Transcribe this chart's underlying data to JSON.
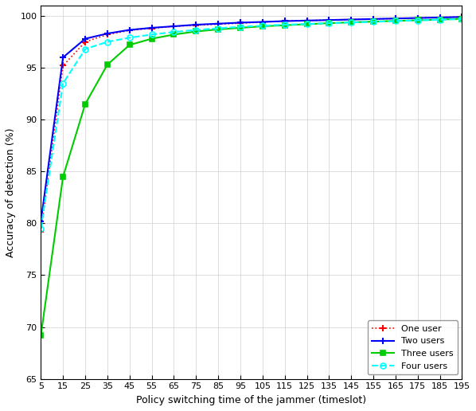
{
  "title": "",
  "xlabel": "Policy switching time of the jammer (timeslot)",
  "ylabel": "Accuracy of detection (%)",
  "xlim": [
    5,
    195
  ],
  "ylim": [
    65,
    101
  ],
  "xticks": [
    5,
    15,
    25,
    35,
    45,
    55,
    65,
    75,
    85,
    95,
    105,
    115,
    125,
    135,
    145,
    155,
    165,
    175,
    185,
    195
  ],
  "yticks": [
    65,
    70,
    75,
    80,
    85,
    90,
    95,
    100
  ],
  "series": [
    {
      "label": "One user",
      "color": "red",
      "linestyle": ":",
      "marker": "+",
      "markersize": 6,
      "markeredgewidth": 1.5,
      "linewidth": 1.2,
      "x": [
        5,
        15,
        25,
        35,
        45,
        55,
        65,
        75,
        85,
        95,
        105,
        115,
        125,
        135,
        145,
        155,
        165,
        175,
        185,
        195
      ],
      "y": [
        79.2,
        95.2,
        97.5,
        98.2,
        98.6,
        98.8,
        99.0,
        99.1,
        99.2,
        99.3,
        99.4,
        99.5,
        99.55,
        99.6,
        99.65,
        99.7,
        99.75,
        99.8,
        99.85,
        99.9
      ]
    },
    {
      "label": "Two users",
      "color": "blue",
      "linestyle": "-",
      "marker": "+",
      "markersize": 6,
      "markeredgewidth": 1.5,
      "linewidth": 1.5,
      "x": [
        5,
        15,
        25,
        35,
        45,
        55,
        65,
        75,
        85,
        95,
        105,
        115,
        125,
        135,
        145,
        155,
        165,
        175,
        185,
        195
      ],
      "y": [
        80.2,
        96.0,
        97.8,
        98.3,
        98.65,
        98.85,
        99.0,
        99.15,
        99.25,
        99.35,
        99.42,
        99.5,
        99.55,
        99.6,
        99.65,
        99.7,
        99.75,
        99.8,
        99.85,
        99.9
      ]
    },
    {
      "label": "Three users",
      "color": "#00cc00",
      "linestyle": "-",
      "marker": "s",
      "markersize": 5,
      "markeredgewidth": 1.2,
      "linewidth": 1.5,
      "markerfacecolor": "#00cc00",
      "x": [
        5,
        15,
        25,
        35,
        45,
        55,
        65,
        75,
        85,
        95,
        105,
        115,
        125,
        135,
        145,
        155,
        165,
        175,
        185,
        195
      ],
      "y": [
        69.2,
        84.5,
        91.5,
        95.3,
        97.2,
        97.8,
        98.2,
        98.5,
        98.7,
        98.85,
        99.0,
        99.1,
        99.2,
        99.3,
        99.38,
        99.45,
        99.52,
        99.58,
        99.65,
        99.72
      ]
    },
    {
      "label": "Four users",
      "color": "cyan",
      "linestyle": "--",
      "marker": "o",
      "markersize": 5,
      "markeredgewidth": 1.2,
      "linewidth": 1.5,
      "markerfacecolor": "none",
      "x": [
        5,
        15,
        25,
        35,
        45,
        55,
        65,
        75,
        85,
        95,
        105,
        115,
        125,
        135,
        145,
        155,
        165,
        175,
        185,
        195
      ],
      "y": [
        79.5,
        93.5,
        96.8,
        97.5,
        97.9,
        98.2,
        98.45,
        98.65,
        98.8,
        98.95,
        99.05,
        99.15,
        99.22,
        99.3,
        99.37,
        99.43,
        99.5,
        99.57,
        99.63,
        99.7
      ]
    }
  ],
  "legend_loc": "lower right",
  "grid": true,
  "background_color": "#ffffff"
}
